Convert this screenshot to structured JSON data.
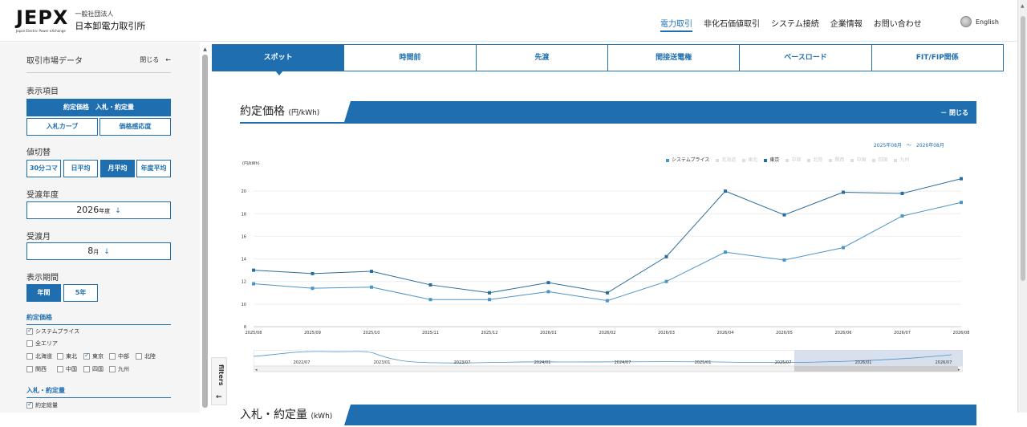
{
  "header": {
    "logo": "JEPX",
    "logo_sub": "Japan Electric Power eXchange",
    "org_small": "一般社団法人",
    "org_name": "日本卸電力取引所",
    "nav": [
      "電力取引",
      "非化石価値取引",
      "システム接続",
      "企業情報",
      "お問い合わせ"
    ],
    "lang": "English"
  },
  "sidebar": {
    "title": "取引市場データ",
    "close": "閉じる",
    "display_label": "表示項目",
    "display_main": "約定価格　入札・約定量",
    "display_opts": [
      "入札カーブ",
      "価格感応度"
    ],
    "switch_label": "値切替",
    "switch_opts": [
      "30分コマ",
      "日平均",
      "月平均",
      "年度平均"
    ],
    "year_label": "受渡年度",
    "year_value": "2026",
    "year_unit": "年度",
    "month_label": "受渡月",
    "month_value": "8",
    "month_unit": "月",
    "period_label": "表示期間",
    "period_opts": [
      "年間",
      "5年"
    ],
    "price_title": "約定価格",
    "price_items": [
      "システムプライス",
      "全エリア",
      "北海道",
      "東北",
      "東京",
      "中部",
      "北陸",
      "関西",
      "中国",
      "四国",
      "九州"
    ],
    "bid_title": "入札・約定量",
    "bid_items": [
      "約定総量"
    ]
  },
  "filters": "filters",
  "tabs": [
    "スポット",
    "時間前",
    "先渡",
    "間接送電権",
    "ベースロード",
    "FIT/FIP関係"
  ],
  "section1": {
    "title": "約定価格",
    "unit": "(円/kWh)",
    "close": "－ 閉じる"
  },
  "section2": {
    "title": "入札・約定量",
    "unit": "(kWh)"
  },
  "range": {
    "from": "2025年08月",
    "sep": "～",
    "to": "2026年08月"
  },
  "legend": [
    "システムプライス",
    "北海道",
    "東北",
    "東京",
    "中部",
    "北陸",
    "関西",
    "中国",
    "四国",
    "九州"
  ],
  "chart_data": {
    "type": "line",
    "ylabel": "(円/kWh)",
    "ylim": [
      8,
      22
    ],
    "yticks": [
      8,
      10,
      12,
      14,
      16,
      18,
      20
    ],
    "categories": [
      "2025/08",
      "2025/09",
      "2025/10",
      "2025/11",
      "2025/12",
      "2026/01",
      "2026/02",
      "2026/03",
      "2026/04",
      "2026/05",
      "2026/06",
      "2026/07",
      "2026/08"
    ],
    "series": [
      {
        "name": "システムプライス",
        "color": "#4a94c8",
        "values": [
          11.8,
          11.4,
          11.5,
          10.4,
          10.4,
          11.1,
          10.3,
          12.0,
          14.6,
          13.9,
          15.0,
          17.8,
          19.0
        ]
      },
      {
        "name": "東京",
        "color": "#2a6d9a",
        "values": [
          13.0,
          12.7,
          12.9,
          11.7,
          11.0,
          11.9,
          11.0,
          14.2,
          20.0,
          17.9,
          19.9,
          19.8,
          21.1
        ]
      }
    ],
    "navigator": {
      "labels": [
        "2022/07",
        "2023/01",
        "2023/07",
        "2024/01",
        "2024/07",
        "2025/01",
        "2025/07",
        "2026/01",
        "2026/07"
      ]
    }
  },
  "colors": {
    "accent": "#1f6fb0"
  }
}
